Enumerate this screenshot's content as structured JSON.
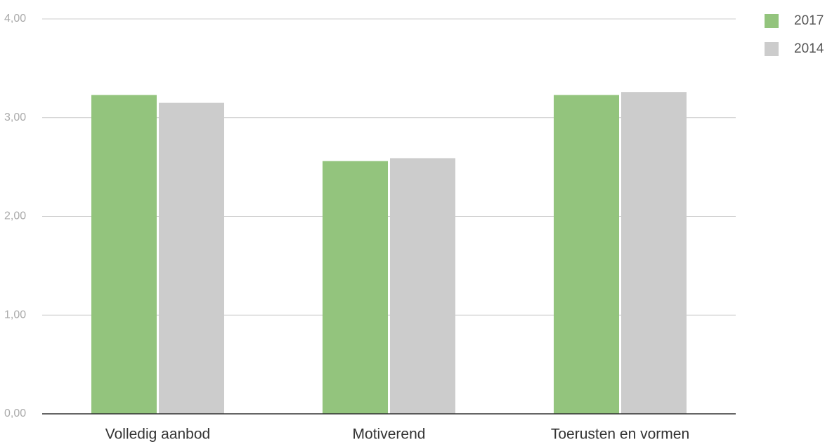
{
  "chart_data": {
    "type": "bar",
    "categories": [
      "Volledig aanbod",
      "Motiverend",
      "Toerusten en vormen"
    ],
    "series": [
      {
        "name": "2017",
        "color": "#93c47d",
        "values": [
          3.23,
          2.56,
          3.23
        ]
      },
      {
        "name": "2014",
        "color": "#cccccc",
        "values": [
          3.15,
          2.59,
          3.26
        ]
      }
    ],
    "ylim": [
      0,
      4
    ],
    "yticks": [
      {
        "value": 0,
        "label": "0,00"
      },
      {
        "value": 1,
        "label": "1,00"
      },
      {
        "value": 2,
        "label": "2,00"
      },
      {
        "value": 3,
        "label": "3,00"
      },
      {
        "value": 4,
        "label": "4,00"
      }
    ],
    "grid": true,
    "legend": "top-right"
  }
}
